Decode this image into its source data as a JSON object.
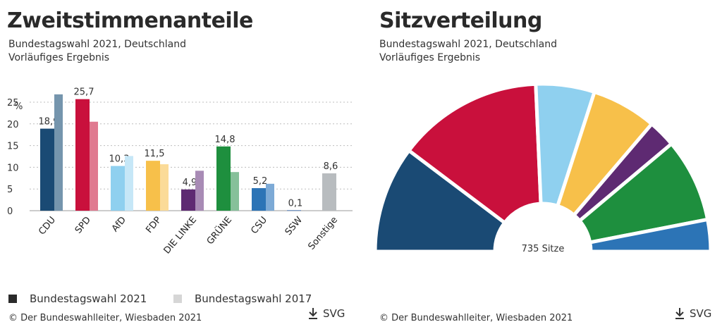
{
  "colors": {
    "CDU": "#1a4a74",
    "SPD": "#c9103c",
    "AfD": "#8fd0ef",
    "FDP": "#f7c04a",
    "DIE LINKE": "#5e2a72",
    "GRÜNE": "#1e8f3e",
    "CSU": "#2c74b6",
    "SSW": "#2a5ea2",
    "Sonstige": "#b8bcbf"
  },
  "colors_2017": {
    "CDU": "#7595ad",
    "SPD": "#e07a90",
    "AfD": "#c6e7f7",
    "FDP": "#fbdb98",
    "DIE LINKE": "#a88bb5",
    "GRÜNE": "#86c09a",
    "CSU": "#7daad6",
    "SSW": "#7d9cc9",
    "Sonstige": "#cfd2d4"
  },
  "left": {
    "title": "Zweitstimmenanteile",
    "subtitle1": "Bundestagswahl 2021, Deutschland",
    "subtitle2": "Vorläufiges Ergebnis",
    "legend": {
      "y2021": "Bundestagswahl 2021",
      "y2017": "Bundestagswahl 2017"
    },
    "legend_colors": {
      "y2021": "#2a2a2a",
      "y2017": "#d6d6d6"
    },
    "copyright": "© Der Bundeswahlleiter, Wiesbaden 2021",
    "download_label": "SVG",
    "download_icon": "download-icon"
  },
  "right": {
    "title": "Sitzverteilung",
    "subtitle1": "Bundestagswahl 2021, Deutschland",
    "subtitle2": "Vorläufiges Ergebnis",
    "center_label": "735 Sitze",
    "copyright": "© Der Bundeswahlleiter, Wiesbaden 2021",
    "download_label": "SVG",
    "download_icon": "download-icon"
  },
  "chart_data": [
    {
      "type": "bar",
      "title": "Zweitstimmenanteile",
      "ylabel": "%",
      "ylim": [
        0,
        25
      ],
      "yticks": [
        0,
        5,
        10,
        15,
        20,
        25
      ],
      "grid": true,
      "legend": "bottom",
      "categories": [
        "CDU",
        "SPD",
        "AfD",
        "FDP",
        "DIE LINKE",
        "GRÜNE",
        "CSU",
        "SSW",
        "Sonstige"
      ],
      "series": [
        {
          "name": "Bundestagswahl 2021",
          "values": [
            18.9,
            25.7,
            10.3,
            11.5,
            4.9,
            14.8,
            5.2,
            0.1,
            8.6
          ]
        },
        {
          "name": "Bundestagswahl 2017",
          "values": [
            26.8,
            20.5,
            12.6,
            10.7,
            9.2,
            8.9,
            6.2,
            null,
            null
          ]
        }
      ],
      "data_labels": [
        "18,9",
        "25,7",
        "10,3",
        "11,5",
        "4,9",
        "14,8",
        "5,2",
        "0,1",
        "8,6"
      ]
    },
    {
      "type": "pie",
      "title": "Sitzverteilung",
      "style": "hemicycle",
      "total_label": "735 Sitze",
      "order": [
        "CDU",
        "SPD",
        "AfD",
        "FDP",
        "DIE LINKE",
        "GRÜNE",
        "CSU"
      ],
      "values": [
        151,
        206,
        83,
        92,
        39,
        118,
        45
      ]
    }
  ]
}
